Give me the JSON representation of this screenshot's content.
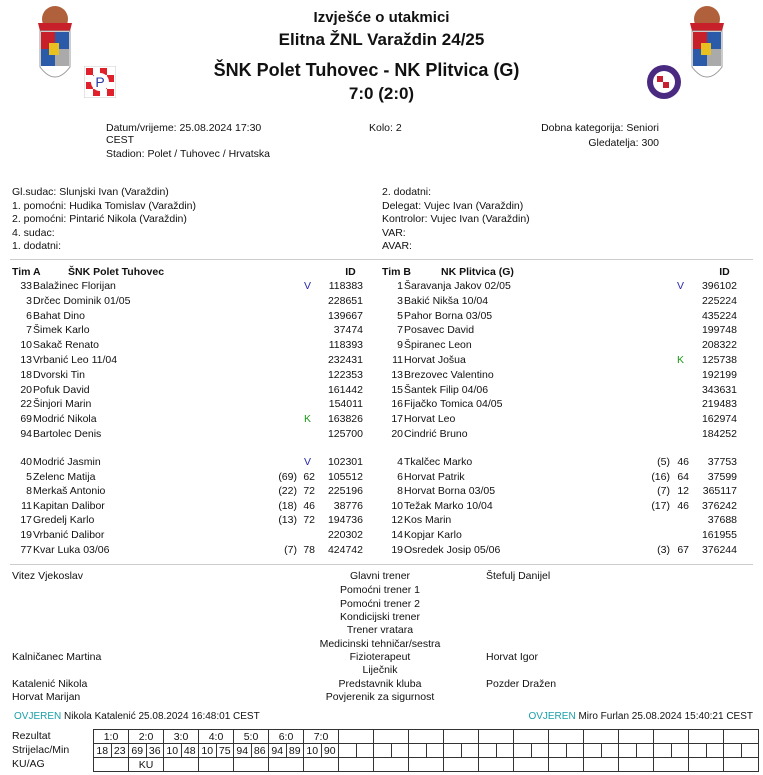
{
  "header": {
    "title": "Izvješće o utakmici",
    "league": "Elitna ŽNL Varaždin 24/25",
    "match": "ŠNK Polet Tuhovec - NK Plitvica (G)",
    "score": "7:0 (2:0)"
  },
  "info": {
    "datetime": "Datum/vrijeme: 25.08.2024 17:30",
    "tz": "CEST",
    "stadium": "Stadion: Polet / Tuhovec / Hrvatska",
    "round": "Kolo: 2",
    "category": "Dobna kategorija: Seniori",
    "spectators": "Gledatelja: 300"
  },
  "officials": {
    "left": [
      "Gl.sudac: Slunjski Ivan (Varaždin)",
      "1. pomoćni: Hudika Tomislav (Varaždin)",
      "2. pomoćni: Pintarić Nikola (Varaždin)",
      "4. sudac:",
      "1. dodatni:"
    ],
    "right": [
      "2. dodatni:",
      "Delegat: Vujec Ivan (Varaždin)",
      "Kontrolor: Vujec Ivan (Varaždin)",
      "VAR:",
      "AVAR:"
    ]
  },
  "teams": [
    {
      "label": "Tim A",
      "name": "ŠNK Polet Tuhovec",
      "id_label": "ID",
      "starters": [
        [
          "33",
          "Balažinec Florijan",
          "V",
          "118383"
        ],
        [
          "3",
          "Drčec Dominik 01/05",
          "",
          "228651"
        ],
        [
          "6",
          "Bahat Dino",
          "",
          "139667"
        ],
        [
          "7",
          "Šimek Karlo",
          "",
          "37474"
        ],
        [
          "10",
          "Sakač Renato",
          "",
          "118393"
        ],
        [
          "13",
          "Vrbanić Leo 11/04",
          "",
          "232431"
        ],
        [
          "18",
          "Dvorski Tin",
          "",
          "122353"
        ],
        [
          "20",
          "Pofuk David",
          "",
          "161442"
        ],
        [
          "22",
          "Šinjori Marin",
          "",
          "154011"
        ],
        [
          "69",
          "Modrić Nikola",
          "K",
          "163826"
        ],
        [
          "94",
          "Bartolec Denis",
          "",
          "125700"
        ]
      ],
      "subs": [
        [
          "40",
          "Modrić Jasmin",
          "",
          "",
          "V",
          "102301"
        ],
        [
          "5",
          "Zelenc Matija",
          "(69)",
          "62",
          "",
          "105512"
        ],
        [
          "8",
          "Merkaš Antonio",
          "(22)",
          "72",
          "",
          "225196"
        ],
        [
          "11",
          "Kapitan Dalibor",
          "(18)",
          "46",
          "",
          "38776"
        ],
        [
          "17",
          "Gredelj Karlo",
          "(13)",
          "72",
          "",
          "194736"
        ],
        [
          "19",
          "Vrbanić Dalibor",
          "",
          "",
          "",
          "220302"
        ],
        [
          "77",
          "Kvar Luka 03/06",
          "(7)",
          "78",
          "",
          "424742"
        ]
      ]
    },
    {
      "label": "Tim B",
      "name": "NK Plitvica (G)",
      "id_label": "ID",
      "starters": [
        [
          "1",
          "Šaravanja Jakov 02/05",
          "V",
          "396102"
        ],
        [
          "3",
          "Bakić Nikša 10/04",
          "",
          "225224"
        ],
        [
          "5",
          "Pahor Borna 03/05",
          "",
          "435224"
        ],
        [
          "7",
          "Posavec David",
          "",
          "199748"
        ],
        [
          "9",
          "Špiranec Leon",
          "",
          "208322"
        ],
        [
          "11",
          "Horvat Jošua",
          "K",
          "125738"
        ],
        [
          "13",
          "Brezovec Valentino",
          "",
          "192199"
        ],
        [
          "15",
          "Šantek Filip 04/06",
          "",
          "343631"
        ],
        [
          "16",
          "Fijačko Tomica 04/05",
          "",
          "219483"
        ],
        [
          "17",
          "Horvat  Leo",
          "",
          "162974"
        ],
        [
          "20",
          "Cindrić Bruno",
          "",
          "184252"
        ]
      ],
      "subs": [
        [
          "4",
          "Tkalčec Marko",
          "(5)",
          "46",
          "",
          "37753"
        ],
        [
          "6",
          "Horvat Patrik",
          "(16)",
          "64",
          "",
          "37599"
        ],
        [
          "8",
          "Horvat Borna 03/05",
          "(7)",
          "12",
          "",
          "365117"
        ],
        [
          "10",
          "Težak Marko 10/04",
          "(17)",
          "46",
          "",
          "376242"
        ],
        [
          "12",
          "Kos Marin",
          "",
          "",
          "",
          "37688"
        ],
        [
          "14",
          "Kopjar Karlo",
          "",
          "",
          "",
          "161955"
        ],
        [
          "19",
          "Osredek Josip 05/06",
          "(3)",
          "67",
          "",
          "376244"
        ]
      ]
    }
  ],
  "staff": [
    [
      "Vitez Vjekoslav",
      "Glavni trener",
      "Štefulj Danijel"
    ],
    [
      "",
      "Pomoćni trener 1",
      ""
    ],
    [
      "",
      "Pomoćni trener 2",
      ""
    ],
    [
      "",
      "Kondicijski trener",
      ""
    ],
    [
      "",
      "Trener vratara",
      ""
    ],
    [
      "",
      "Medicinski tehničar/sestra",
      ""
    ],
    [
      "Kalničanec Martina",
      "Fizioterapeut",
      "Horvat Igor"
    ],
    [
      "",
      "Liječnik",
      ""
    ],
    [
      "Katalenić Nikola",
      "Predstavnik kluba",
      "Pozder Dražen"
    ],
    [
      "Horvat Marijan",
      "Povjerenik za sigurnost",
      ""
    ]
  ],
  "verification": {
    "left_status": "OVJEREN",
    "left_text": "Nikola Katalenić 25.08.2024 16:48:01 CEST",
    "right_status": "OVJEREN",
    "right_text": "Miro Furlan 25.08.2024 15:40:21 CEST"
  },
  "result": {
    "labels": [
      "Rezultat",
      "Strijelac/Min",
      "KU/AG"
    ],
    "scores": [
      "1:0",
      "2:0",
      "3:0",
      "4:0",
      "5:0",
      "6:0",
      "7:0"
    ],
    "scorers": [
      [
        "18",
        "23"
      ],
      [
        "69",
        "36"
      ],
      [
        "10",
        "48"
      ],
      [
        "10",
        "75"
      ],
      [
        "94",
        "86"
      ],
      [
        "94",
        "89"
      ],
      [
        "10",
        "90"
      ]
    ],
    "ku_ag": [
      "",
      "KU",
      "",
      "",
      "",
      "",
      ""
    ]
  },
  "colors": {
    "verified": "#1aa0a8",
    "captain": "#1a9a1a",
    "goalkeeper": "#2a2ab0"
  }
}
